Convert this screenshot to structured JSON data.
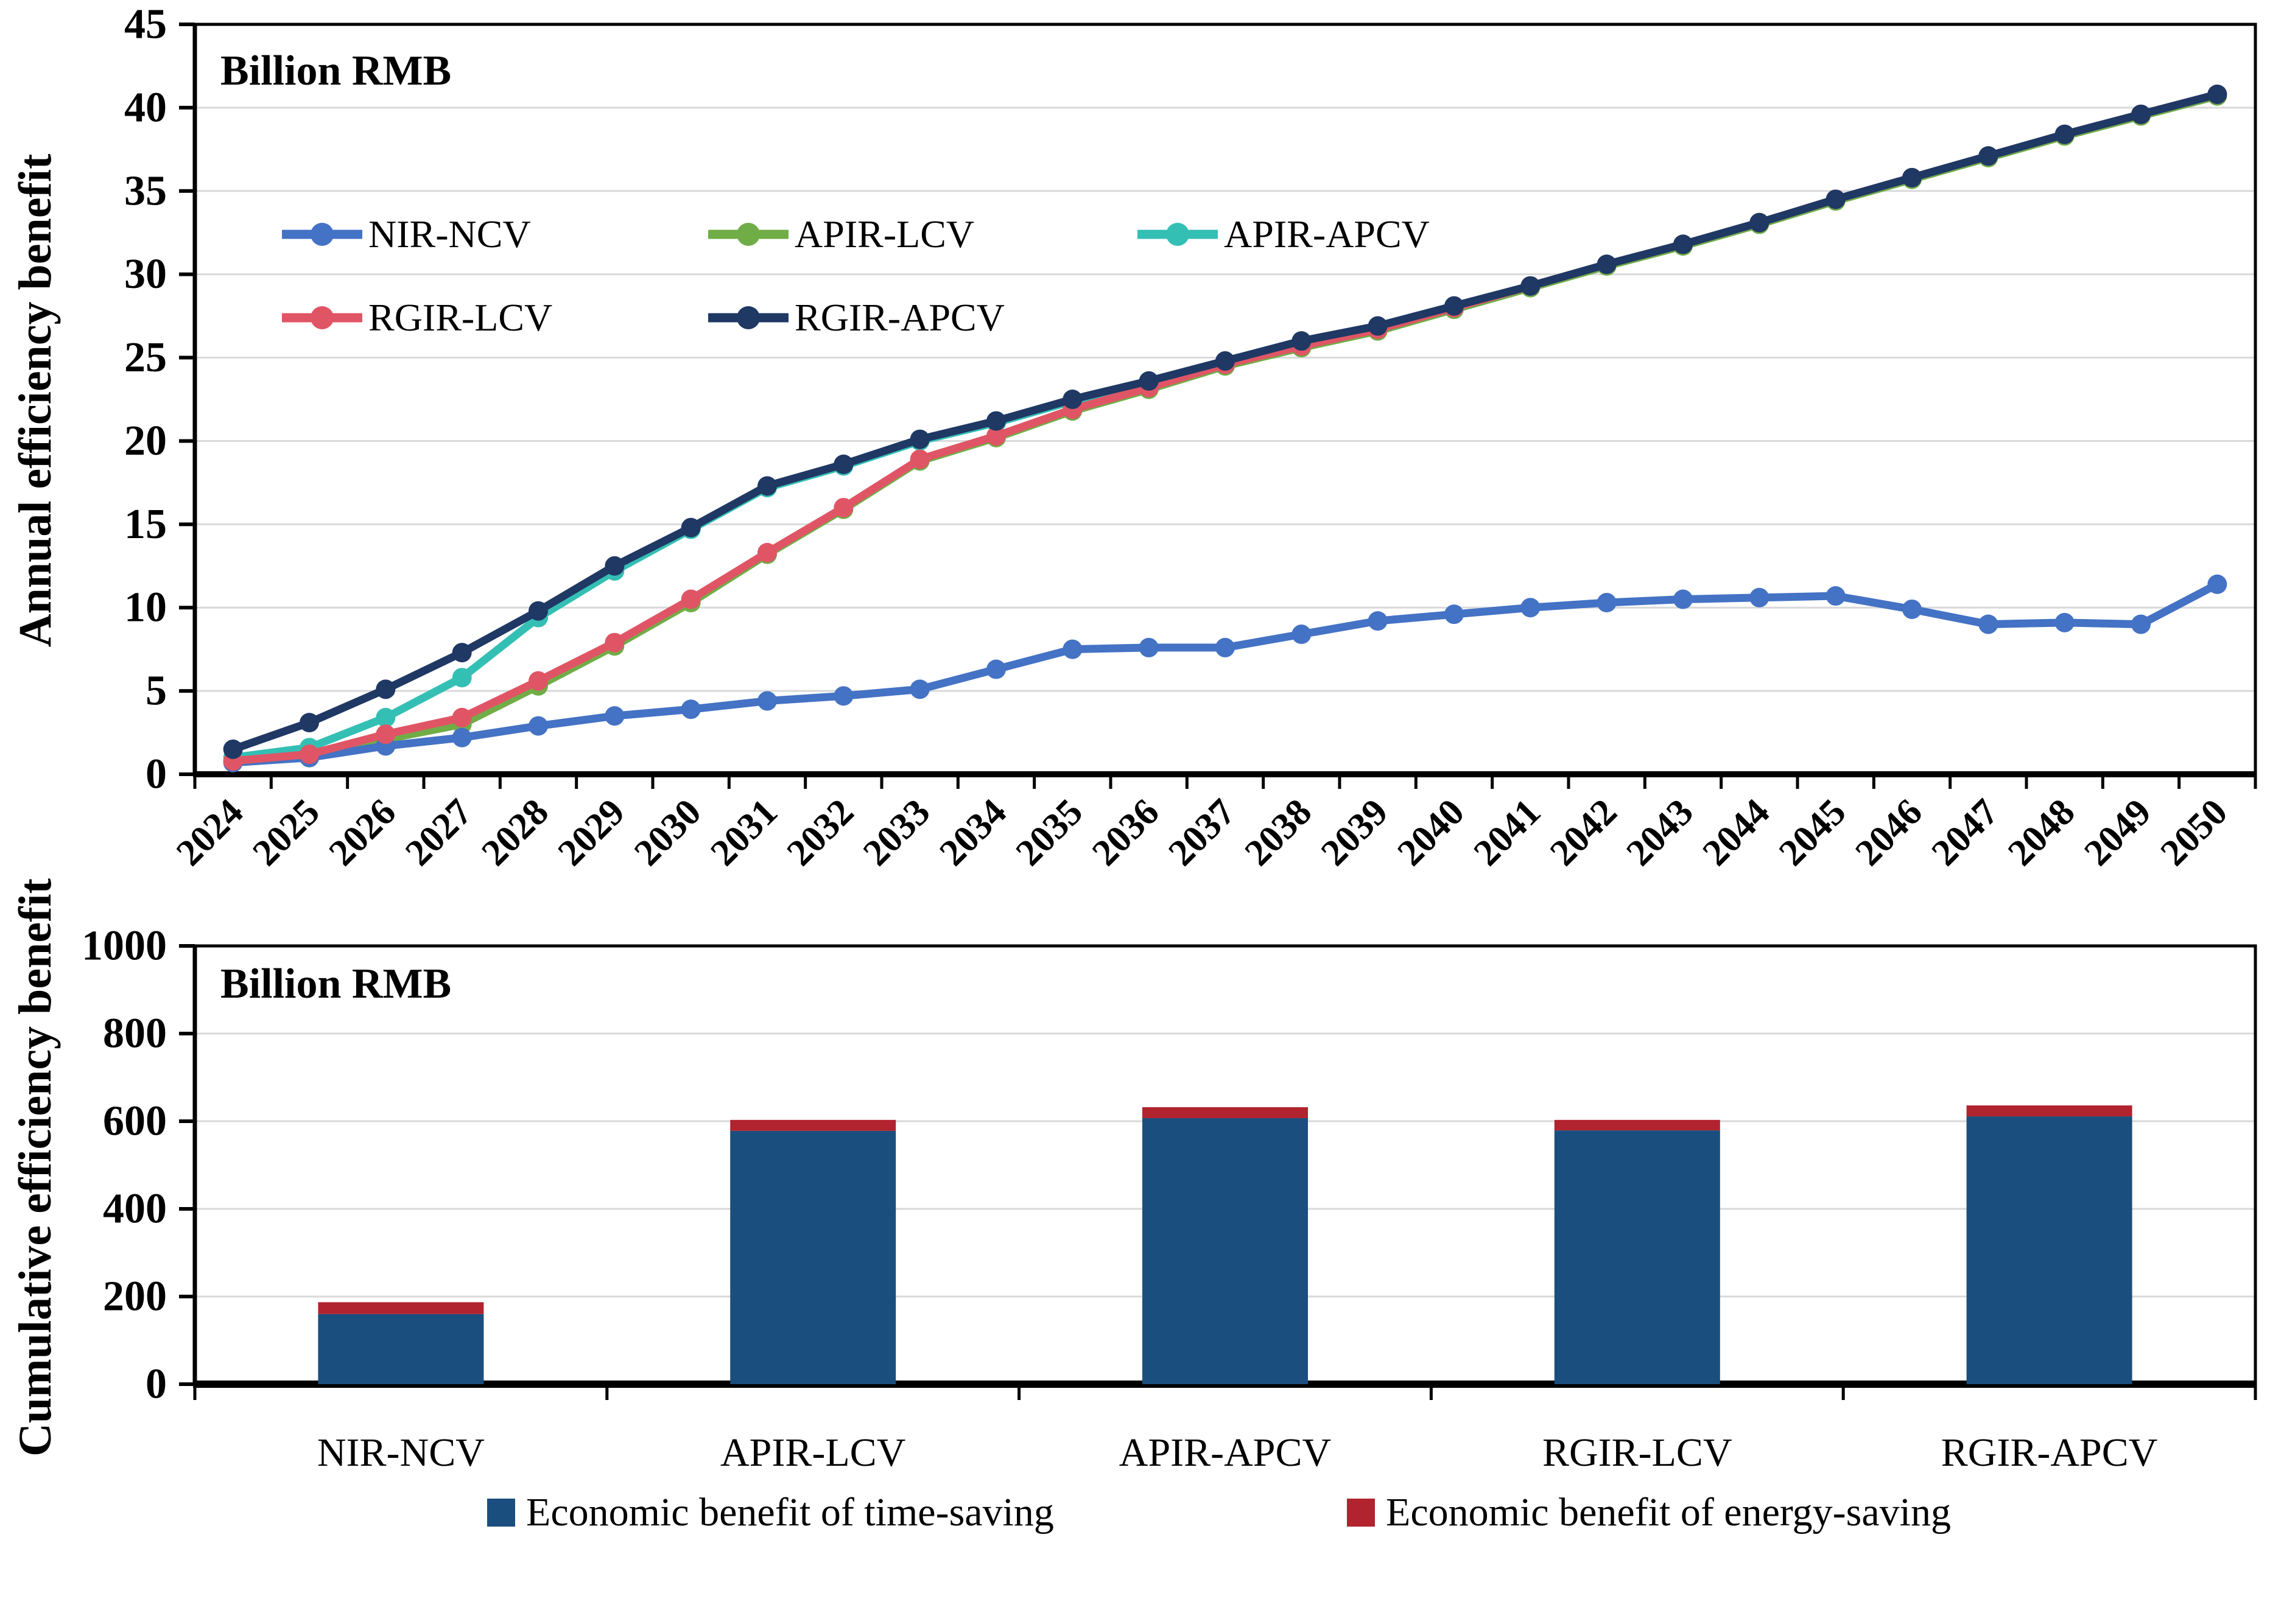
{
  "chart_data": [
    {
      "type": "line",
      "title": "",
      "unit_label": "Billion RMB",
      "y_axis_title": "Annual efficiency benefit",
      "xlabel": "",
      "ylabel": "Annual efficiency benefit (Billion RMB)",
      "ylim": [
        0,
        45
      ],
      "ytick_step": 5,
      "grid": true,
      "legend_position": "inside-top-left-two-rows",
      "x_categories": [
        "2024",
        "2025",
        "2026",
        "2027",
        "2028",
        "2029",
        "2030",
        "2031",
        "2032",
        "2033",
        "2034",
        "2035",
        "2036",
        "2037",
        "2038",
        "2039",
        "2040",
        "2041",
        "2042",
        "2043",
        "2044",
        "2045",
        "2046",
        "2047",
        "2048",
        "2049",
        "2050"
      ],
      "series": [
        {
          "name": "NIR-NCV",
          "color": "#4472C4",
          "values": [
            0.7,
            1.0,
            1.7,
            2.2,
            2.9,
            3.5,
            3.9,
            4.4,
            4.7,
            5.1,
            6.3,
            7.5,
            7.6,
            7.6,
            8.4,
            9.2,
            9.6,
            10.0,
            10.3,
            10.5,
            10.6,
            10.7,
            9.9,
            9.0,
            9.1,
            9.0,
            11.4
          ]
        },
        {
          "name": "APIR-LCV",
          "color": "#70AD47",
          "values": [
            0.8,
            1.0,
            2.1,
            3.0,
            5.3,
            7.7,
            10.3,
            13.2,
            15.9,
            18.8,
            20.2,
            21.8,
            23.1,
            24.5,
            25.6,
            26.6,
            27.9,
            29.2,
            30.5,
            31.7,
            33.0,
            34.4,
            35.7,
            37.0,
            38.3,
            39.5,
            40.7
          ]
        },
        {
          "name": "APIR-APCV",
          "color": "#34BFB4",
          "values": [
            1.0,
            1.6,
            3.4,
            5.8,
            9.4,
            12.2,
            14.7,
            17.2,
            18.5,
            20.0,
            21.1,
            22.4,
            23.5,
            24.7,
            25.9,
            26.8,
            28.0,
            29.3,
            30.6,
            31.8,
            33.1,
            34.5,
            35.8,
            37.1,
            38.4,
            39.6,
            40.8
          ]
        },
        {
          "name": "RGIR-LCV",
          "color": "#E05565",
          "values": [
            0.8,
            1.2,
            2.4,
            3.4,
            5.6,
            7.9,
            10.5,
            13.3,
            16.0,
            18.9,
            20.3,
            21.9,
            23.2,
            24.6,
            25.7,
            26.7,
            28.0,
            29.3,
            30.6,
            31.8,
            33.1,
            34.5,
            35.8,
            37.1,
            38.4,
            39.6,
            40.8
          ]
        },
        {
          "name": "RGIR-APCV",
          "color": "#1F3864",
          "values": [
            1.5,
            3.1,
            5.1,
            7.3,
            9.8,
            12.5,
            14.8,
            17.3,
            18.6,
            20.1,
            21.2,
            22.5,
            23.6,
            24.8,
            26.0,
            26.9,
            28.1,
            29.3,
            30.6,
            31.8,
            33.1,
            34.5,
            35.8,
            37.1,
            38.4,
            39.6,
            40.8
          ]
        }
      ]
    },
    {
      "type": "bar",
      "title": "",
      "unit_label": "Billion RMB",
      "y_axis_title": "Cumulative efficiency benefit",
      "xlabel": "",
      "ylabel": "Cumulative efficiency benefit (Billion RMB)",
      "ylim": [
        0,
        1000
      ],
      "ytick_step": 200,
      "grid": true,
      "stacked": true,
      "legend_position": "bottom",
      "categories": [
        "NIR-NCV",
        "APIR-LCV",
        "APIR-APCV",
        "RGIR-LCV",
        "RGIR-APCV"
      ],
      "series": [
        {
          "name": "Economic benefit of time-saving",
          "color": "#1A4E7E",
          "values": [
            160,
            578,
            607,
            579,
            611
          ]
        },
        {
          "name": "Economic benefit of energy-saving",
          "color": "#B1232E",
          "values": [
            27,
            25,
            25,
            24,
            25
          ]
        }
      ]
    }
  ],
  "colors": {
    "gridline": "#D9D9D9",
    "axis": "#000000",
    "background": "#FFFFFF"
  }
}
